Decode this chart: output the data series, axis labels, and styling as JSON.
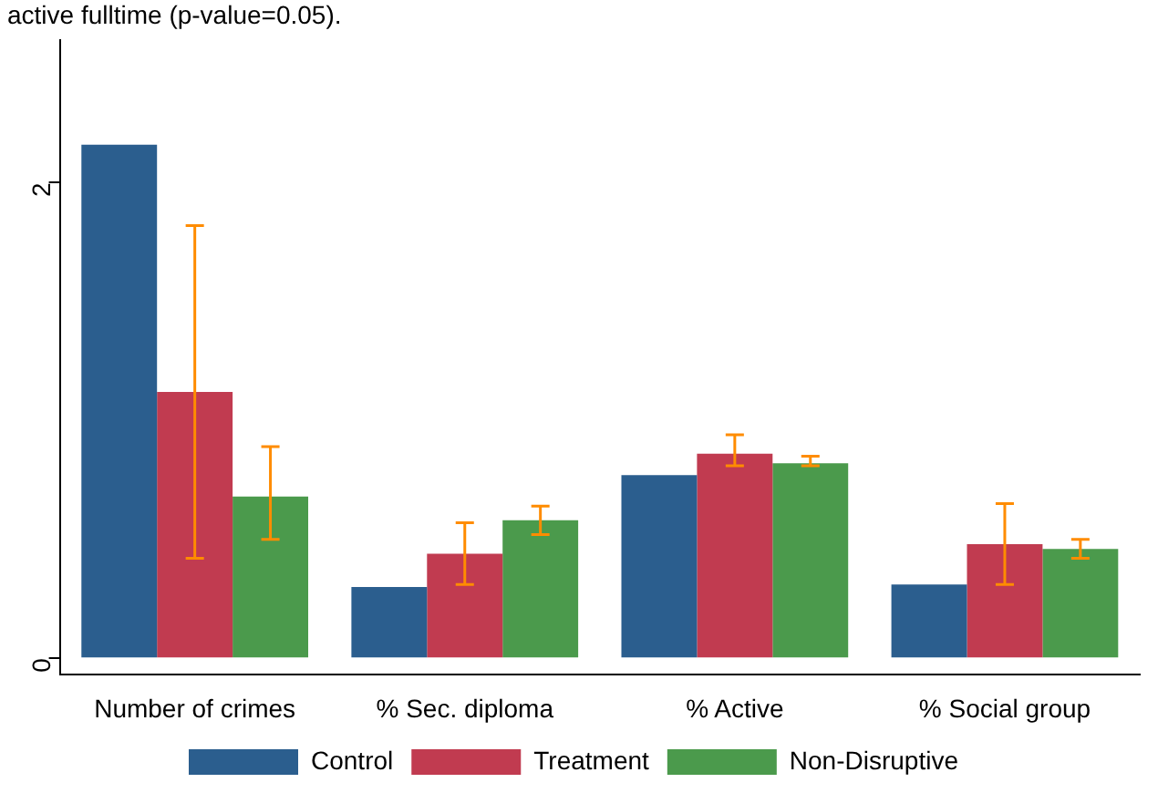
{
  "chart_data": {
    "type": "bar",
    "annotations": [
      "active fulltime (p-value=0.05)."
    ],
    "categories": [
      "Number of crimes",
      "% Sec. diploma",
      "% Active",
      "% Social group"
    ],
    "series": [
      {
        "name": "Control",
        "color": "#2b5e8e",
        "values": [
          2.16,
          0.3,
          0.77,
          0.31
        ]
      },
      {
        "name": "Treatment",
        "color": "#c13b50",
        "values": [
          1.12,
          0.44,
          0.86,
          0.48
        ],
        "errors": [
          [
            0.42,
            1.82
          ],
          [
            0.31,
            0.57
          ],
          [
            0.81,
            0.94
          ],
          [
            0.31,
            0.65
          ]
        ]
      },
      {
        "name": "Non-Disruptive",
        "color": "#4b9a4c",
        "values": [
          0.68,
          0.58,
          0.82,
          0.46
        ],
        "errors": [
          [
            0.5,
            0.89
          ],
          [
            0.52,
            0.64
          ],
          [
            0.81,
            0.85
          ],
          [
            0.42,
            0.5
          ]
        ]
      }
    ],
    "ylim": [
      -0.07,
      2.6
    ],
    "yticks": [
      0,
      2
    ],
    "grid": false,
    "legend": "bottom"
  }
}
